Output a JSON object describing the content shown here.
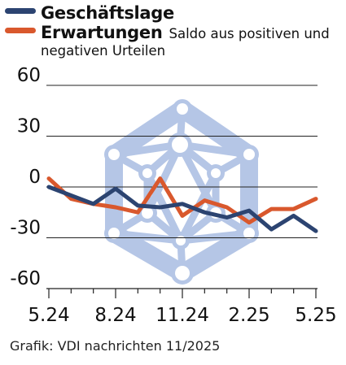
{
  "legend": {
    "items": [
      {
        "label": "Geschäftslage",
        "color": "#2c4471"
      },
      {
        "label": "Erwartungen",
        "color": "#d9582d"
      }
    ],
    "note_line1": "Saldo aus positiven und",
    "note_line2": "negativen Urteilen"
  },
  "source": "Grafik: VDI nachrichten 11/2025",
  "watermark": {
    "name": "network-hexagon-logo",
    "color": "#b5c6e6"
  },
  "chart_data": {
    "type": "line",
    "ylim": [
      -60,
      60
    ],
    "yticks": [
      60,
      30,
      0,
      -30,
      -60
    ],
    "ytick_labels": [
      "60",
      "30",
      "0",
      "-30",
      "-60"
    ],
    "x_labels": [
      {
        "label": "5.24",
        "index": 0
      },
      {
        "label": "8.24",
        "index": 3
      },
      {
        "label": "11.24",
        "index": 6
      },
      {
        "label": "2.25",
        "index": 9
      },
      {
        "label": "5.25",
        "index": 12
      }
    ],
    "x_count": 13,
    "grid": true,
    "series": [
      {
        "name": "Geschäftslage",
        "color": "#2c4471",
        "values": [
          0,
          -5,
          -10,
          -1,
          -11,
          -12,
          -10,
          -15,
          -18,
          -14,
          -25,
          -17,
          -26
        ]
      },
      {
        "name": "Erwartungen",
        "color": "#d9582d",
        "values": [
          5,
          -7,
          -10,
          -12,
          -15,
          5,
          -17,
          -8,
          -12,
          -21,
          -13,
          -13,
          -7
        ]
      }
    ]
  }
}
